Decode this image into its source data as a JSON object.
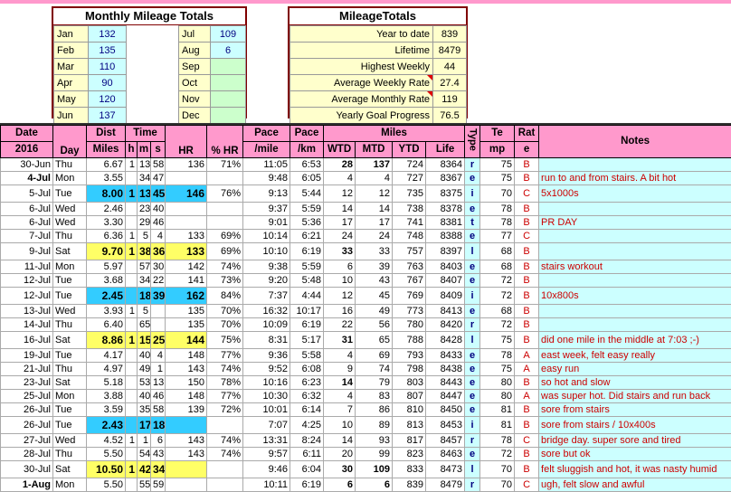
{
  "monthly_totals": {
    "title": "Monthly Mileage Totals",
    "left": [
      [
        "Jan",
        132
      ],
      [
        "Feb",
        135
      ],
      [
        "Mar",
        110
      ],
      [
        "Apr",
        90
      ],
      [
        "May",
        120
      ],
      [
        "Jun",
        137
      ]
    ],
    "right": [
      [
        "Jul",
        109
      ],
      [
        "Aug",
        6
      ],
      [
        "Sep",
        null
      ],
      [
        "Oct",
        null
      ],
      [
        "Nov",
        null
      ],
      [
        "Dec",
        null
      ]
    ]
  },
  "mileage_totals": {
    "title": "MileageTotals",
    "rows": [
      [
        "Year to date",
        839
      ],
      [
        "Lifetime",
        8479
      ],
      [
        "Highest Weekly",
        44
      ],
      [
        "Average Weekly Rate",
        27.4
      ],
      [
        "Average Monthly Rate",
        119
      ],
      [
        "Yearly Goal Progress",
        76.5
      ]
    ]
  },
  "table": {
    "header": {
      "date": [
        "Date",
        "2016"
      ],
      "day": "Day",
      "dist": [
        "Dist",
        "Miles"
      ],
      "time": "Time",
      "h": "h",
      "m": "m",
      "s": "s",
      "hr": "HR",
      "pct_hr": "% HR",
      "pace_mile": [
        "Pace",
        "/mile"
      ],
      "pace_km": [
        "Pace",
        "/km"
      ],
      "miles": "Miles",
      "wtd": "WTD",
      "mtd": "MTD",
      "ytd": "YTD",
      "life": "Life",
      "type": "Type",
      "temp": [
        "Te",
        "mp"
      ],
      "rate": [
        "Rat",
        "e"
      ],
      "notes": "Notes"
    },
    "rows": [
      [
        "30-Jun",
        "Thu",
        "6.67",
        1,
        13,
        58,
        136,
        "71%",
        "11:05",
        "6:53",
        28,
        137,
        724,
        8364,
        "r",
        75,
        "B",
        null
      ],
      [
        "4-Jul",
        "Mon",
        "3.55",
        null,
        34,
        47,
        null,
        null,
        "9:48",
        "6:05",
        4,
        4,
        727,
        8367,
        "e",
        75,
        "B",
        "run to and from stairs. A bit hot"
      ],
      [
        "5-Jul",
        "Tue",
        "8.00",
        1,
        13,
        45,
        146,
        "76%",
        "9:13",
        "5:44",
        12,
        12,
        735,
        8375,
        "i",
        70,
        "C",
        "5x1000s"
      ],
      [
        "6-Jul",
        "Wed",
        "2.46",
        null,
        23,
        40,
        null,
        null,
        "9:37",
        "5:59",
        14,
        14,
        738,
        8378,
        "e",
        78,
        "B",
        null
      ],
      [
        "6-Jul",
        "Wed",
        "3.30",
        null,
        29,
        46,
        null,
        null,
        "9:01",
        "5:36",
        17,
        17,
        741,
        8381,
        "t",
        78,
        "B",
        "PR DAY"
      ],
      [
        "7-Jul",
        "Thu",
        "6.36",
        1,
        5,
        4,
        133,
        "69%",
        "10:14",
        "6:21",
        24,
        24,
        748,
        8388,
        "e",
        77,
        "C",
        null
      ],
      [
        "9-Jul",
        "Sat",
        "9.70",
        1,
        38,
        36,
        133,
        "69%",
        "10:10",
        "6:19",
        33,
        33,
        757,
        8397,
        "l",
        68,
        "B",
        null
      ],
      [
        "11-Jul",
        "Mon",
        "5.97",
        null,
        57,
        30,
        142,
        "74%",
        "9:38",
        "5:59",
        6,
        39,
        763,
        8403,
        "e",
        68,
        "B",
        "stairs workout"
      ],
      [
        "12-Jul",
        "Tue",
        "3.68",
        null,
        34,
        22,
        141,
        "73%",
        "9:20",
        "5:48",
        10,
        43,
        767,
        8407,
        "e",
        72,
        "B",
        null
      ],
      [
        "12-Jul",
        "Tue",
        "2.45",
        null,
        18,
        39,
        162,
        "84%",
        "7:37",
        "4:44",
        12,
        45,
        769,
        8409,
        "i",
        72,
        "B",
        "10x800s"
      ],
      [
        "13-Jul",
        "Wed",
        "3.93",
        1,
        5,
        null,
        135,
        "70%",
        "16:32",
        "10:17",
        16,
        49,
        773,
        8413,
        "e",
        68,
        "B",
        null
      ],
      [
        "14-Jul",
        "Thu",
        "6.40",
        null,
        65,
        null,
        135,
        "70%",
        "10:09",
        "6:19",
        22,
        56,
        780,
        8420,
        "r",
        72,
        "B",
        null
      ],
      [
        "16-Jul",
        "Sat",
        "8.86",
        1,
        15,
        25,
        144,
        "75%",
        "8:31",
        "5:17",
        31,
        65,
        788,
        8428,
        "l",
        75,
        "B",
        "did one mile in the middle at 7:03 ;-)"
      ],
      [
        "19-Jul",
        "Tue",
        "4.17",
        null,
        40,
        4,
        148,
        "77%",
        "9:36",
        "5:58",
        4,
        69,
        793,
        8433,
        "e",
        78,
        "A",
        "east week, felt easy really"
      ],
      [
        "21-Jul",
        "Thu",
        "4.97",
        null,
        49,
        1,
        143,
        "74%",
        "9:52",
        "6:08",
        9,
        74,
        798,
        8438,
        "e",
        75,
        "A",
        "easy run"
      ],
      [
        "23-Jul",
        "Sat",
        "5.18",
        null,
        53,
        13,
        150,
        "78%",
        "10:16",
        "6:23",
        14,
        79,
        803,
        8443,
        "e",
        80,
        "B",
        "so hot and slow"
      ],
      [
        "25-Jul",
        "Mon",
        "3.88",
        null,
        40,
        46,
        148,
        "77%",
        "10:30",
        "6:32",
        4,
        83,
        807,
        8447,
        "e",
        80,
        "A",
        "was super hot. Did stairs and run back"
      ],
      [
        "26-Jul",
        "Tue",
        "3.59",
        null,
        35,
        58,
        139,
        "72%",
        "10:01",
        "6:14",
        7,
        86,
        810,
        8450,
        "e",
        81,
        "B",
        "sore from stairs"
      ],
      [
        "26-Jul",
        "Tue",
        "2.43",
        null,
        17,
        18,
        null,
        null,
        "7:07",
        "4:25",
        10,
        89,
        813,
        8453,
        "i",
        81,
        "B",
        "sore from stairs / 10x400s"
      ],
      [
        "27-Jul",
        "Wed",
        "4.52",
        1,
        1,
        6,
        143,
        "74%",
        "13:31",
        "8:24",
        14,
        93,
        817,
        8457,
        "r",
        78,
        "C",
        "bridge day. super sore and tired"
      ],
      [
        "28-Jul",
        "Thu",
        "5.50",
        null,
        54,
        43,
        143,
        "74%",
        "9:57",
        "6:11",
        20,
        99,
        823,
        8463,
        "e",
        72,
        "B",
        "sore but ok"
      ],
      [
        "30-Jul",
        "Sat",
        "10.50",
        1,
        42,
        34,
        null,
        null,
        "9:46",
        "6:04",
        30,
        109,
        833,
        8473,
        "l",
        70,
        "B",
        "felt sluggish and hot, it was nasty humid"
      ],
      [
        "1-Aug",
        "Mon",
        "5.50",
        null,
        55,
        59,
        null,
        null,
        "10:11",
        "6:19",
        6,
        6,
        839,
        8479,
        "r",
        70,
        "C",
        "ugh, felt slow and awful"
      ]
    ]
  }
}
